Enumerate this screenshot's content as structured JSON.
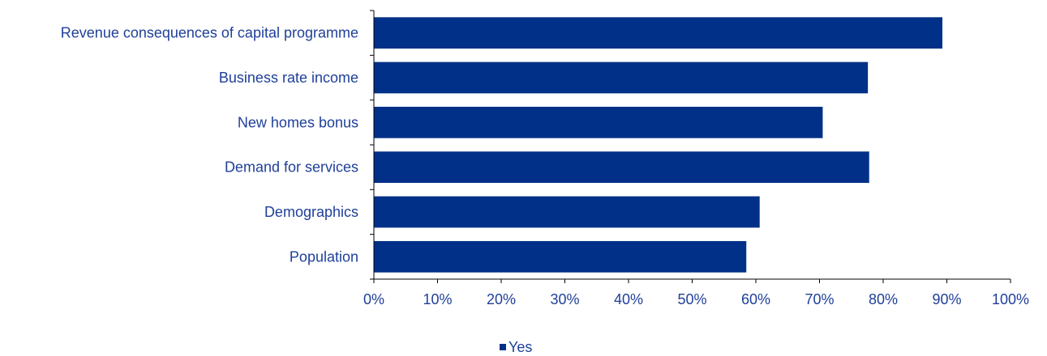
{
  "chart_data": {
    "type": "bar",
    "orientation": "horizontal",
    "categories": [
      "Revenue consequences of capital programme",
      "Business rate income ",
      "New homes bonus",
      "Demand for services",
      "Demographics",
      "Population"
    ],
    "series": [
      {
        "name": "Yes",
        "values": [
          89.3,
          77.6,
          70.5,
          77.8,
          60.6,
          58.5
        ]
      }
    ],
    "xlim": [
      0,
      100
    ],
    "x_ticks": [
      "0%",
      "10%",
      "20%",
      "30%",
      "40%",
      "50%",
      "60%",
      "70%",
      "80%",
      "90%",
      "100%"
    ],
    "grid": false,
    "legend": "bottom-center",
    "colors": {
      "bar": "#003087",
      "text": "#1f3f99",
      "axis": "#000000"
    }
  }
}
